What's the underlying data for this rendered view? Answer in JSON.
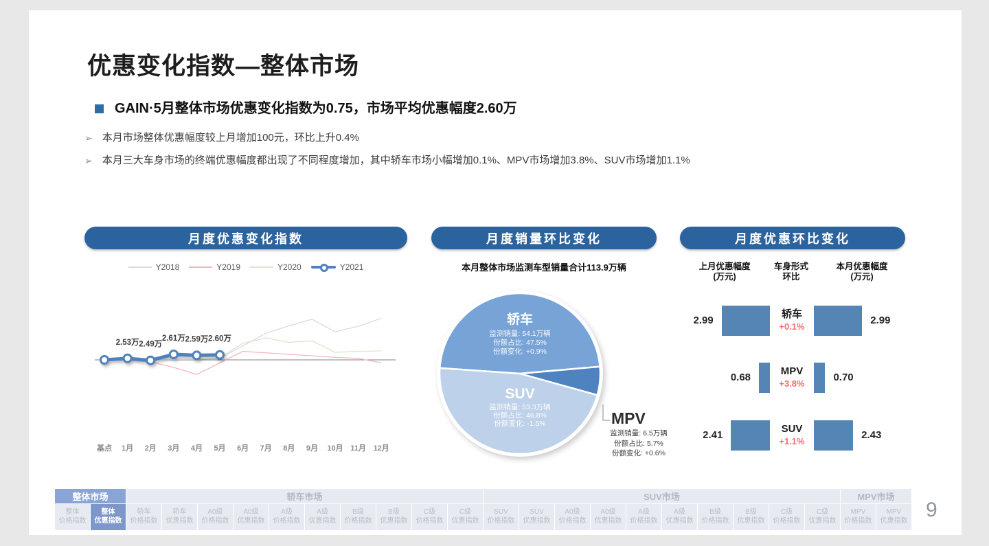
{
  "header": {
    "title": "优惠变化指数—整体市场",
    "key_point": "GAIN·5月整体市场优惠变化指数为0.75，市场平均优惠幅度2.60万",
    "bullets": [
      "本月市场整体优惠幅度较上月增加100元，环比上升0.4%",
      "本月三大车身市场的终端优惠幅度都出现了不同程度增加，其中轿车市场小幅增加0.1%、MPV市场增加3.8%、SUV市场增加1.1%"
    ]
  },
  "panels": {
    "index_panel_title": "月度优惠变化指数",
    "sales_panel_title": "月度销量环比变化",
    "sales_panel_subtitle": "本月整体市场监测车型销量合计113.9万辆",
    "momentum_panel_title": "月度优惠环比变化"
  },
  "chart_data": [
    {
      "type": "line",
      "title": "月度优惠变化指数",
      "x": [
        "基点",
        "1月",
        "2月",
        "3月",
        "4月",
        "5月",
        "6月",
        "7月",
        "8月",
        "9月",
        "10月",
        "11月",
        "12月"
      ],
      "baseline": 2.5,
      "unit": "万",
      "legend_position": "top",
      "grid": false,
      "series": [
        {
          "name": "Y2018",
          "color": "#d9dbe4",
          "values": [
            2.5,
            2.51,
            2.5,
            2.51,
            2.51,
            2.53,
            2.78,
            3.03,
            3.18,
            3.31,
            3.06,
            3.17,
            3.33
          ]
        },
        {
          "name": "Y2019",
          "color": "#f2b9bd",
          "values": [
            2.5,
            2.49,
            2.46,
            2.35,
            2.21,
            2.44,
            2.67,
            2.64,
            2.61,
            2.58,
            2.55,
            2.53,
            2.44
          ]
        },
        {
          "name": "Y2020",
          "color": "#d6e8cd",
          "values": [
            2.5,
            2.5,
            2.5,
            2.51,
            2.51,
            2.54,
            2.83,
            2.94,
            2.85,
            2.88,
            2.65,
            2.67,
            2.68
          ]
        },
        {
          "name": "Y2021",
          "color": "#4f81bd",
          "values": [
            2.5,
            2.53,
            2.49,
            2.61,
            2.59,
            2.6
          ],
          "point_labels": [
            "",
            "2.53万",
            "2.49万",
            "2.61万",
            "2.59万",
            "2.60万"
          ]
        }
      ]
    },
    {
      "type": "pie",
      "title": "月度销量环比变化",
      "subtitle": "本月整体市场监测车型销量合计113.9万辆",
      "label_prefixes": {
        "volume": "监测销量: ",
        "share": "份额占比: ",
        "change": "份额变化: "
      },
      "slices": [
        {
          "name": "轿车",
          "volume": "54.1万辆",
          "share": 47.5,
          "share_label": "47.5%",
          "change": "+0.9%",
          "color": "#78a3d7"
        },
        {
          "name": "MPV",
          "volume": "6.5万辆",
          "share": 5.7,
          "share_label": "5.7%",
          "change": "+0.6%",
          "color": "#4f83bf"
        },
        {
          "name": "SUV",
          "volume": "53.3万辆",
          "share": 46.8,
          "share_label": "46.8%",
          "change": "-1.5%",
          "color": "#bed1ea"
        }
      ]
    },
    {
      "type": "bar",
      "title": "月度优惠环比变化",
      "bar_color": "#5585b5",
      "change_color": "#fb6a6d",
      "columns": [
        {
          "line1": "上月优惠幅度",
          "line2": "(万元)"
        },
        {
          "line1": "车身形式",
          "line2": "环比"
        },
        {
          "line1": "本月优惠幅度",
          "line2": "(万元)"
        }
      ],
      "rows": [
        {
          "name": "轿车",
          "last": 2.99,
          "last_label": "2.99",
          "change": "+0.1%",
          "current": 2.99,
          "current_label": "2.99"
        },
        {
          "name": "MPV",
          "last": 0.68,
          "last_label": "0.68",
          "change": "+3.8%",
          "current": 0.7,
          "current_label": "0.70"
        },
        {
          "name": "SUV",
          "last": 2.41,
          "last_label": "2.41",
          "change": "+1.1%",
          "current": 2.43,
          "current_label": "2.43"
        }
      ]
    }
  ],
  "bottom_nav": {
    "groups": [
      {
        "label": "整体市场",
        "span": 2,
        "active": true
      },
      {
        "label": "轿车市场",
        "span": 10,
        "active": false
      },
      {
        "label": "SUV市场",
        "span": 10,
        "active": false
      },
      {
        "label": "MPV市场",
        "span": 2,
        "active": false
      }
    ],
    "tabs": [
      {
        "line1": "整体",
        "line2": "价格指数",
        "active": false
      },
      {
        "line1": "整体",
        "line2": "优惠指数",
        "active": true
      },
      {
        "line1": "轿车",
        "line2": "价格指数",
        "active": false
      },
      {
        "line1": "轿车",
        "line2": "优惠指数",
        "active": false
      },
      {
        "line1": "A0级",
        "line2": "价格指数",
        "active": false
      },
      {
        "line1": "A0级",
        "line2": "优惠指数",
        "active": false
      },
      {
        "line1": "A级",
        "line2": "价格指数",
        "active": false
      },
      {
        "line1": "A级",
        "line2": "优惠指数",
        "active": false
      },
      {
        "line1": "B级",
        "line2": "价格指数",
        "active": false
      },
      {
        "line1": "B级",
        "line2": "优惠指数",
        "active": false
      },
      {
        "line1": "C级",
        "line2": "价格指数",
        "active": false
      },
      {
        "line1": "C级",
        "line2": "优惠指数",
        "active": false
      },
      {
        "line1": "SUV",
        "line2": "价格指数",
        "active": false
      },
      {
        "line1": "SUV",
        "line2": "优惠指数",
        "active": false
      },
      {
        "line1": "A0级",
        "line2": "价格指数",
        "active": false
      },
      {
        "line1": "A0级",
        "line2": "优惠指数",
        "active": false
      },
      {
        "line1": "A级",
        "line2": "价格指数",
        "active": false
      },
      {
        "line1": "A级",
        "line2": "优惠指数",
        "active": false
      },
      {
        "line1": "B级",
        "line2": "价格指数",
        "active": false
      },
      {
        "line1": "B级",
        "line2": "优惠指数",
        "active": false
      },
      {
        "line1": "C级",
        "line2": "价格指数",
        "active": false
      },
      {
        "line1": "C级",
        "line2": "优惠指数",
        "active": false
      },
      {
        "line1": "MPV",
        "line2": "价格指数",
        "active": false
      },
      {
        "line1": "MPV",
        "line2": "优惠指数",
        "active": false
      }
    ]
  },
  "page_number": "9"
}
